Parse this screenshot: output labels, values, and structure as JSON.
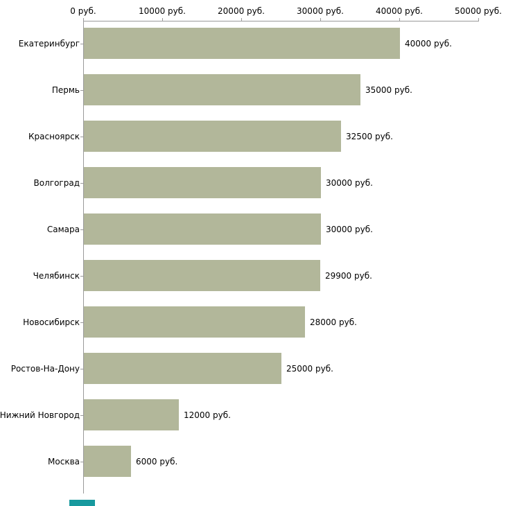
{
  "chart_data": {
    "type": "bar",
    "orientation": "horizontal",
    "title": "",
    "xlabel": "",
    "ylabel": "",
    "unit": "руб.",
    "categories": [
      "Екатеринбург",
      "Пермь",
      "Красноярск",
      "Волгоград",
      "Самара",
      "Челябинск",
      "Новосибирск",
      "Ростов-На-Дону",
      "Нижний Новгород",
      "Москва"
    ],
    "values": [
      40000,
      35000,
      32500,
      30000,
      30000,
      29900,
      28000,
      25000,
      12000,
      6000
    ],
    "value_labels": [
      "40000 руб.",
      "35000 руб.",
      "32500 руб.",
      "30000 руб.",
      "30000 руб.",
      "29900 руб.",
      "28000 руб.",
      "25000 руб.",
      "12000 руб.",
      "6000 руб."
    ],
    "x_ticks": [
      0,
      10000,
      20000,
      30000,
      40000,
      50000
    ],
    "x_tick_labels": [
      "0 руб.",
      "10000 руб.",
      "20000 руб.",
      "30000 руб.",
      "40000 руб.",
      "50000 руб."
    ],
    "xlim": [
      0,
      50000
    ],
    "grid": false,
    "legend": false,
    "axis_position": "top-left",
    "bar_color": "#b2b79a",
    "axis_color": "#999999",
    "text_color": "#000000"
  },
  "footer": {
    "accent_color": "#17999e"
  }
}
